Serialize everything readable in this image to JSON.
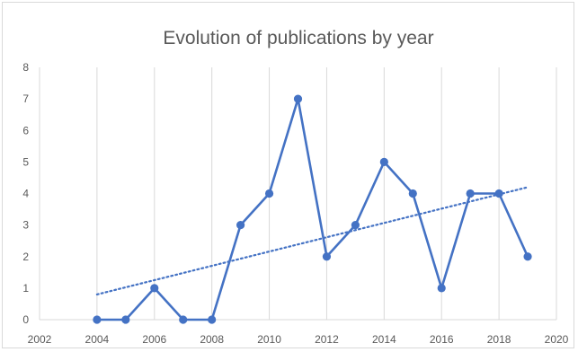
{
  "chart_data": {
    "type": "line",
    "title": "Evolution of publications by year",
    "xlabel": "",
    "ylabel": "",
    "xlim": [
      2002,
      2020
    ],
    "ylim": [
      0,
      8
    ],
    "x_ticks": [
      2002,
      2004,
      2006,
      2008,
      2010,
      2012,
      2014,
      2016,
      2018,
      2020
    ],
    "y_ticks": [
      0,
      1,
      2,
      3,
      4,
      5,
      6,
      7,
      8
    ],
    "grid": {
      "vertical": true,
      "horizontal": false
    },
    "legend": "none",
    "series": [
      {
        "x": [
          2004,
          2005,
          2006,
          2007,
          2008,
          2009,
          2010,
          2011,
          2012,
          2013,
          2014,
          2015,
          2016,
          2017,
          2018,
          2019
        ],
        "values": [
          0,
          0,
          1,
          0,
          0,
          3,
          4,
          7,
          2,
          3,
          5,
          4,
          1,
          4,
          4,
          2
        ],
        "color": "#4472c4",
        "markers": true
      }
    ],
    "trendline": {
      "type": "linear",
      "style": "dotted",
      "color": "#4472c4",
      "x": [
        2004,
        2019
      ],
      "values": [
        0.8,
        4.2
      ]
    }
  }
}
